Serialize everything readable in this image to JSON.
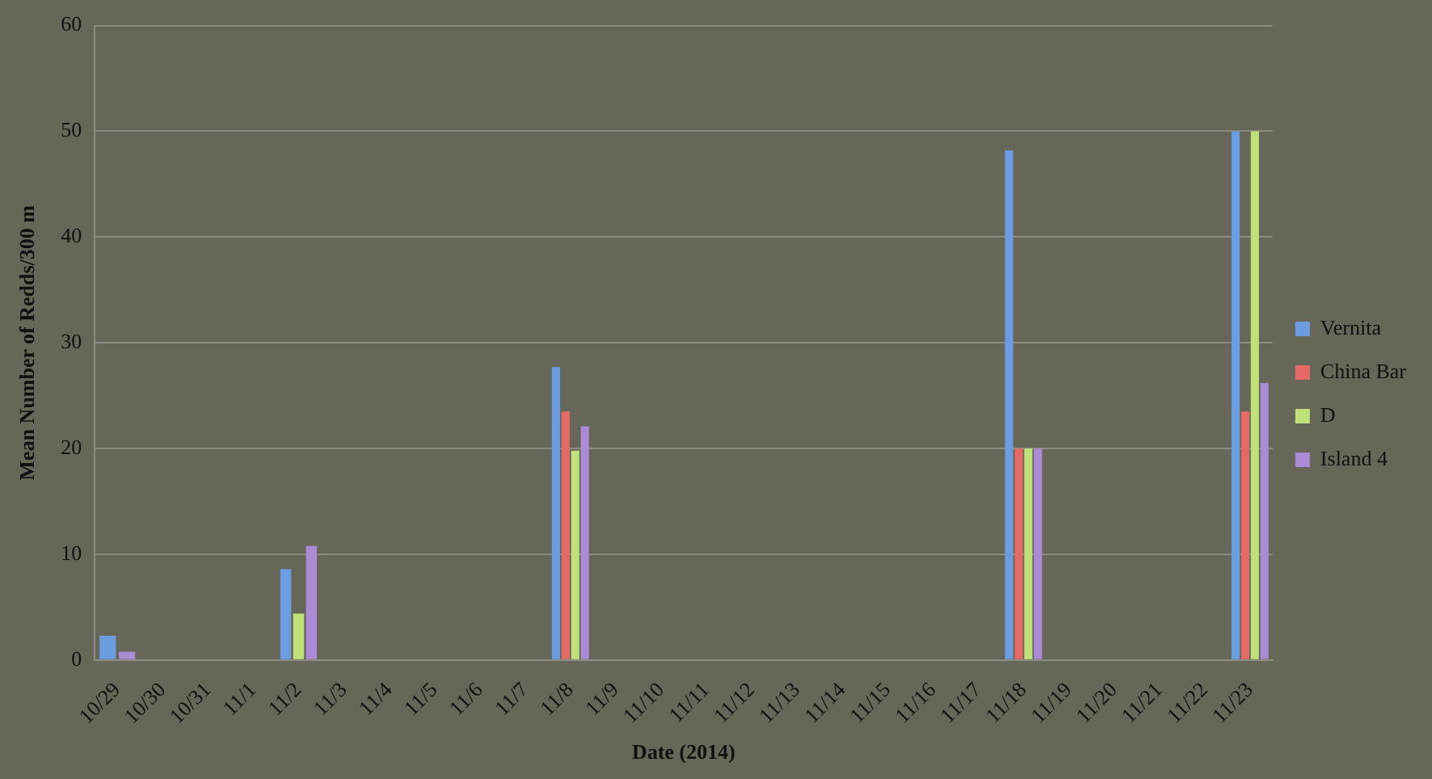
{
  "chart_data": {
    "type": "bar",
    "xlabel": "Date (2014)",
    "ylabel": "Mean Number of Redds/300 m",
    "categories": [
      "10/29",
      "10/30",
      "10/31",
      "11/1",
      "11/2",
      "11/3",
      "11/4",
      "11/5",
      "11/6",
      "11/7",
      "11/8",
      "11/9",
      "11/10",
      "11/11",
      "11/12",
      "11/13",
      "11/14",
      "11/15",
      "11/16",
      "11/17",
      "11/18",
      "11/19",
      "11/20",
      "11/21",
      "11/22",
      "11/23"
    ],
    "series": [
      {
        "name": "Vernita",
        "color": "#6b9de0",
        "values": [
          2.3,
          null,
          null,
          null,
          8.6,
          null,
          null,
          null,
          null,
          null,
          27.7,
          null,
          null,
          null,
          null,
          null,
          null,
          null,
          null,
          null,
          48.2,
          null,
          null,
          null,
          null,
          50
        ]
      },
      {
        "name": "China Bar",
        "color": "#e56a66",
        "values": [
          null,
          null,
          null,
          null,
          null,
          null,
          null,
          null,
          null,
          null,
          23.5,
          null,
          null,
          null,
          null,
          null,
          null,
          null,
          null,
          null,
          20,
          null,
          null,
          null,
          null,
          23.5
        ]
      },
      {
        "name": "D",
        "color": "#c0e07a",
        "values": [
          null,
          null,
          null,
          null,
          4.4,
          null,
          null,
          null,
          null,
          null,
          19.8,
          null,
          null,
          null,
          null,
          null,
          null,
          null,
          null,
          null,
          20,
          null,
          null,
          null,
          null,
          50
        ]
      },
      {
        "name": "Island 4",
        "color": "#a98bd6",
        "values": [
          0.8,
          null,
          null,
          null,
          10.8,
          null,
          null,
          null,
          null,
          null,
          22.1,
          null,
          null,
          null,
          null,
          null,
          null,
          null,
          null,
          null,
          20,
          null,
          null,
          null,
          null,
          26.2
        ]
      }
    ],
    "ylim": [
      0,
      60
    ],
    "yticks": [
      0,
      10,
      20,
      30,
      40,
      50,
      60
    ],
    "grid": "y",
    "legend": "right"
  }
}
